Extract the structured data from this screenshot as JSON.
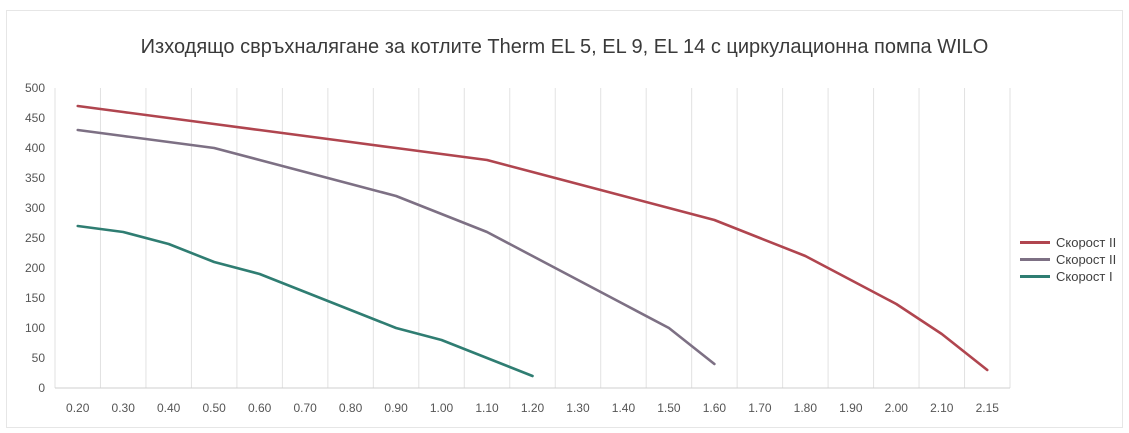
{
  "chart_data": {
    "type": "line",
    "title": "Изходящо свръхналягане за котлите Therm EL 5, EL 9, EL 14 с циркулационна помпа WILO",
    "xlabel": "",
    "ylabel": "",
    "categories": [
      "0.20",
      "0.30",
      "0.40",
      "0.50",
      "0.60",
      "0.70",
      "0.80",
      "0.90",
      "1.00",
      "1.10",
      "1.20",
      "1.30",
      "1.40",
      "1.50",
      "1.60",
      "1.70",
      "1.80",
      "1.90",
      "2.00",
      "2.10",
      "2.15"
    ],
    "yticks": [
      "0",
      "50",
      "100",
      "150",
      "200",
      "250",
      "300",
      "350",
      "400",
      "450",
      "500"
    ],
    "ylim": [
      0,
      500
    ],
    "grid": "vertical",
    "legend_position": "right",
    "series": [
      {
        "name": "Скорост II",
        "color": "#b0454f",
        "values": [
          470,
          460,
          450,
          440,
          430,
          420,
          410,
          400,
          390,
          380,
          360,
          340,
          320,
          300,
          280,
          250,
          220,
          180,
          140,
          90,
          30
        ]
      },
      {
        "name": "Скорост II",
        "color": "#7d7084",
        "values": [
          430,
          420,
          410,
          400,
          380,
          360,
          340,
          320,
          290,
          260,
          220,
          180,
          140,
          100,
          40,
          null,
          null,
          null,
          null,
          null,
          null
        ]
      },
      {
        "name": "Скорост I",
        "color": "#2f7d72",
        "values": [
          270,
          260,
          240,
          210,
          190,
          160,
          130,
          100,
          80,
          50,
          20,
          null,
          null,
          null,
          null,
          null,
          null,
          null,
          null,
          null,
          null
        ]
      }
    ]
  }
}
